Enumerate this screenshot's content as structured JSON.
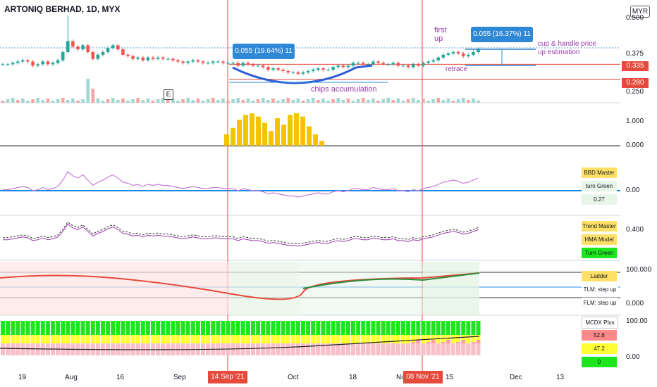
{
  "header": {
    "title": "ARTONIQ BERHAD, 1D, MYX",
    "currency": "MYR",
    "event_marker": "E"
  },
  "price_axis": {
    "ticks": [
      "0.500",
      "0.375",
      "0.250"
    ],
    "labels": {
      "p335": "0.335",
      "p280": "0.280"
    }
  },
  "time_axis": {
    "ticks": [
      "19",
      "Aug",
      "16",
      "Sep",
      "Oct",
      "18",
      "No",
      "15",
      "Dec",
      "13"
    ],
    "highlight": [
      "14 Sep '21",
      "08 Nov '21"
    ]
  },
  "annotations": {
    "bubble1": "0.055 (19.64%) 11",
    "bubble2": "0.055 (16.37%) 11",
    "first_up": "first up",
    "cup_handle": "cup & handle price up estimation",
    "retrace": "retrace",
    "chips": "chips accumulation"
  },
  "indicators": {
    "volume_axis": [
      "1.000",
      "0.000"
    ],
    "bbd": {
      "label": "BBD Master",
      "status": "turn Green",
      "value": "0.27",
      "axis": "0.00"
    },
    "trend": {
      "label": "Trend Master",
      "model": "HMA Model",
      "status": "Turn Green",
      "axis": "0.400"
    },
    "ladder": {
      "label": "Ladder Master",
      "tlm": "TLM: step up",
      "flm": "FLM: step up",
      "axis": [
        "100.000",
        "0.000"
      ]
    },
    "mcdx": {
      "label": "MCDX Plus",
      "v1": "52.8",
      "v2": "47.2",
      "v3": "0",
      "axis": [
        "100.00",
        "0.00"
      ]
    }
  },
  "colors": {
    "up": "#26a69a",
    "down": "#ef5350",
    "blue": "#2f88d6",
    "gold": "#f5c400",
    "purple": "#9a3aab"
  },
  "chart_data": {
    "type": "candlestick",
    "title": "ARTONIQ BERHAD, 1D, MYX",
    "ylim": [
      0.24,
      0.52
    ],
    "x_dates": [
      "Jul 12",
      "Jul 13",
      "Jul 14",
      "Jul 15",
      "Jul 16",
      "Jul 19",
      "Jul 20",
      "Jul 21",
      "Jul 22",
      "Jul 23",
      "Jul 26",
      "Jul 27",
      "Jul 28",
      "Jul 29",
      "Jul 30",
      "Aug 2",
      "Aug 3",
      "Aug 4",
      "Aug 5",
      "Aug 6",
      "Aug 9",
      "Aug 10",
      "Aug 11",
      "Aug 12",
      "Aug 13",
      "Aug 16",
      "Aug 17",
      "Aug 18",
      "Aug 19",
      "Aug 20",
      "Aug 23",
      "Aug 24",
      "Aug 25",
      "Aug 26",
      "Aug 27",
      "Aug 30",
      "Aug 31",
      "Sep 1",
      "Sep 2",
      "Sep 3",
      "Sep 6",
      "Sep 7",
      "Sep 8",
      "Sep 9",
      "Sep 10",
      "Sep 13",
      "Sep 14",
      "Sep 15",
      "Sep 16",
      "Sep 17",
      "Sep 20",
      "Sep 21",
      "Sep 22",
      "Sep 23",
      "Sep 24",
      "Sep 27",
      "Sep 28",
      "Sep 29",
      "Sep 30",
      "Oct 1",
      "Oct 4",
      "Oct 5",
      "Oct 6",
      "Oct 7",
      "Oct 8",
      "Oct 11",
      "Oct 12",
      "Oct 13",
      "Oct 14",
      "Oct 15",
      "Oct 18",
      "Oct 19",
      "Oct 20",
      "Oct 21",
      "Oct 22",
      "Oct 25",
      "Oct 26",
      "Oct 27",
      "Oct 28",
      "Oct 29",
      "Nov 1",
      "Nov 2",
      "Nov 3",
      "Nov 4",
      "Nov 5",
      "Nov 8",
      "Nov 9",
      "Nov 10",
      "Nov 11",
      "Nov 12",
      "Nov 15",
      "Nov 16",
      "Nov 17",
      "Nov 18",
      "Nov 19",
      "Nov 22"
    ],
    "close": [
      0.335,
      0.335,
      0.34,
      0.345,
      0.35,
      0.345,
      0.33,
      0.335,
      0.345,
      0.335,
      0.34,
      0.35,
      0.38,
      0.42,
      0.4,
      0.39,
      0.405,
      0.38,
      0.355,
      0.37,
      0.38,
      0.395,
      0.405,
      0.39,
      0.37,
      0.365,
      0.355,
      0.36,
      0.35,
      0.36,
      0.355,
      0.36,
      0.355,
      0.355,
      0.35,
      0.345,
      0.34,
      0.345,
      0.35,
      0.345,
      0.34,
      0.34,
      0.345,
      0.345,
      0.34,
      0.34,
      0.34,
      0.33,
      0.34,
      0.335,
      0.33,
      0.33,
      0.325,
      0.315,
      0.32,
      0.315,
      0.31,
      0.305,
      0.305,
      0.3,
      0.305,
      0.31,
      0.315,
      0.32,
      0.315,
      0.315,
      0.325,
      0.33,
      0.325,
      0.33,
      0.34,
      0.34,
      0.335,
      0.335,
      0.345,
      0.34,
      0.335,
      0.335,
      0.34,
      0.33,
      0.33,
      0.325,
      0.335,
      0.33,
      0.34,
      0.345,
      0.35,
      0.36,
      0.37,
      0.375,
      0.38,
      0.375,
      0.365,
      0.37,
      0.38,
      0.39
    ],
    "spikes": [
      {
        "date": "Jul 29",
        "high": 0.515,
        "volume": 1.0
      }
    ],
    "price_levels": [
      0.335,
      0.28
    ]
  }
}
